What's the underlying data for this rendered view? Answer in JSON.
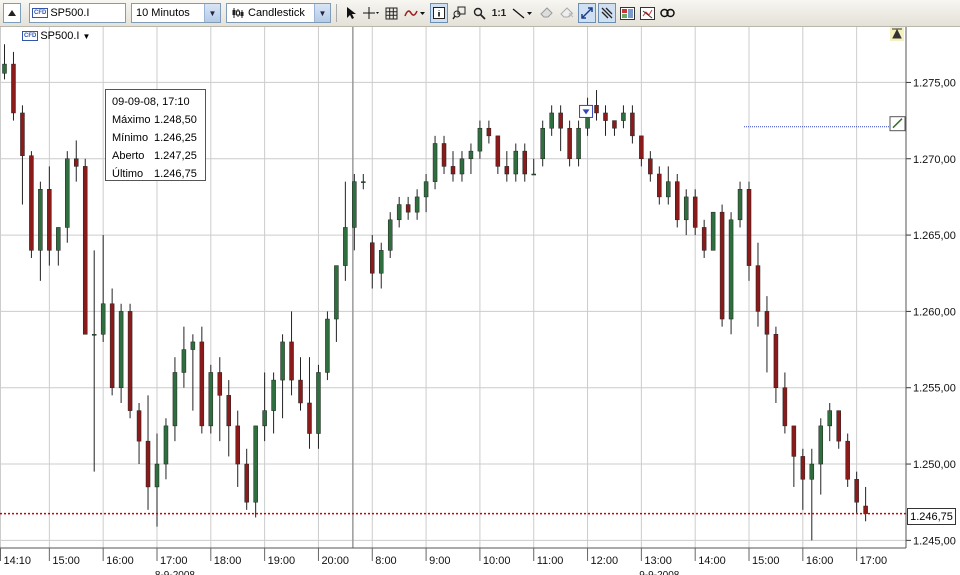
{
  "toolbar": {
    "symbol_badge": "CFD",
    "symbol_value": "SP500.I",
    "interval_value": "10 Minutos",
    "chart_type_value": "Candlestick",
    "one_to_one_label": "1:1"
  },
  "chart": {
    "instrument_badge": "CFD",
    "instrument_label": "SP500.I",
    "info_box": {
      "datetime": "09-09-08, 17:10",
      "rows": [
        {
          "label": "Máximo",
          "value": "1.248,50"
        },
        {
          "label": "Mínimo",
          "value": "1.246,25"
        },
        {
          "label": "Aberto",
          "value": "1.247,25"
        },
        {
          "label": "Último",
          "value": "1.246,75"
        }
      ]
    },
    "last_price_label": "1.246,75",
    "last_price_value": 1246.75,
    "colors": {
      "up": "#2f6e3e",
      "down": "#8b1a1a",
      "grid": "#cccccc",
      "last_line": "#cc0000",
      "marker": "#3344bb"
    }
  },
  "chart_data": {
    "type": "candlestick",
    "ylim": [
      1244.5,
      1278.5
    ],
    "y_ticks": [
      {
        "value": 1275,
        "label": "1.275,00"
      },
      {
        "value": 1270,
        "label": "1.270,00"
      },
      {
        "value": 1265,
        "label": "1.265,00"
      },
      {
        "value": 1260,
        "label": "1.260,00"
      },
      {
        "value": 1255,
        "label": "1.255,00"
      },
      {
        "value": 1250,
        "label": "1.250,00"
      },
      {
        "value": 1245,
        "label": "1.245,00"
      }
    ],
    "x_ticks": [
      "14:10",
      "15:00",
      "16:00",
      "17:00",
      "18:00",
      "19:00",
      "20:00",
      "8:00",
      "9:00",
      "10:00",
      "11:00",
      "12:00",
      "13:00",
      "14:00",
      "15:00",
      "16:00",
      "17:00"
    ],
    "x_tick_bar_index": [
      0,
      5,
      11,
      17,
      23,
      29,
      35,
      41,
      47,
      53,
      59,
      65,
      71,
      77,
      83,
      89,
      95
    ],
    "date_labels": [
      {
        "label": "8-9-2008",
        "bar_index": 19
      },
      {
        "label": "9-9-2008",
        "bar_index": 73
      }
    ],
    "session_break_bar_index": 38,
    "series": [
      {
        "ohlc": [
          [
            1275.6,
            1277.5,
            1275.2,
            1276.2
          ],
          [
            1276.2,
            1277.0,
            1272.5,
            1273.0
          ],
          [
            1273.0,
            1273.5,
            1267.0,
            1270.2
          ],
          [
            1270.2,
            1270.5,
            1263.5,
            1264.0
          ],
          [
            1264.0,
            1268.5,
            1262.0,
            1268.0
          ],
          [
            1268.0,
            1269.5,
            1263.0,
            1264.0
          ],
          [
            1264.0,
            1265.5,
            1263.0,
            1265.5
          ],
          [
            1265.5,
            1270.5,
            1264.5,
            1270.0
          ],
          [
            1270.0,
            1271.2,
            1268.5,
            1269.5
          ],
          [
            1269.5,
            1270.0,
            1258.5,
            1258.5
          ],
          [
            1258.5,
            1264.0,
            1249.5,
            1258.5
          ],
          [
            1258.5,
            1265.0,
            1258.0,
            1260.5
          ],
          [
            1260.5,
            1261.5,
            1254.5,
            1255.0
          ],
          [
            1255.0,
            1260.5,
            1254.0,
            1260.0
          ],
          [
            1260.0,
            1260.5,
            1253.0,
            1253.5
          ],
          [
            1253.5,
            1254.0,
            1250.0,
            1251.5
          ],
          [
            1251.5,
            1254.5,
            1247.0,
            1248.5
          ],
          [
            1248.5,
            1252.0,
            1245.9,
            1250.0
          ],
          [
            1250.0,
            1253.0,
            1249.0,
            1252.5
          ],
          [
            1252.5,
            1257.0,
            1251.5,
            1256.0
          ],
          [
            1256.0,
            1259.0,
            1255.0,
            1257.5
          ],
          [
            1257.5,
            1258.5,
            1253.5,
            1258.0
          ],
          [
            1258.0,
            1259.0,
            1252.0,
            1252.5
          ],
          [
            1252.5,
            1256.5,
            1252.0,
            1256.0
          ],
          [
            1256.0,
            1257.0,
            1251.5,
            1254.5
          ],
          [
            1254.5,
            1255.5,
            1250.5,
            1252.5
          ],
          [
            1252.5,
            1253.5,
            1248.5,
            1250.0
          ],
          [
            1250.0,
            1251.0,
            1247.0,
            1247.5
          ],
          [
            1247.5,
            1252.5,
            1246.5,
            1252.5
          ],
          [
            1252.5,
            1256.0,
            1251.5,
            1253.5
          ],
          [
            1253.5,
            1256.0,
            1252.0,
            1255.5
          ],
          [
            1255.5,
            1258.5,
            1253.0,
            1258.0
          ],
          [
            1258.0,
            1260.0,
            1254.5,
            1255.5
          ],
          [
            1255.5,
            1257.0,
            1253.5,
            1254.0
          ],
          [
            1254.0,
            1257.0,
            1251.0,
            1252.0
          ],
          [
            1252.0,
            1256.5,
            1251.0,
            1256.0
          ],
          [
            1256.0,
            1260.0,
            1255.5,
            1259.5
          ],
          [
            1259.5,
            1263.0,
            1258.0,
            1263.0
          ],
          [
            1263.0,
            1268.5,
            1262.0,
            1265.5
          ],
          [
            1265.5,
            1269.0,
            1264.0,
            1268.5
          ],
          [
            1268.5,
            1269.0,
            1268.0,
            1268.5
          ],
          [
            1264.5,
            1265.0,
            1261.5,
            1262.5
          ],
          [
            1262.5,
            1264.5,
            1261.5,
            1264.0
          ],
          [
            1264.0,
            1266.5,
            1263.5,
            1266.0
          ],
          [
            1266.0,
            1267.5,
            1265.5,
            1267.0
          ],
          [
            1267.0,
            1267.5,
            1266.0,
            1266.5
          ],
          [
            1266.5,
            1268.0,
            1266.0,
            1267.5
          ],
          [
            1267.5,
            1269.0,
            1266.5,
            1268.5
          ],
          [
            1268.5,
            1271.5,
            1268.0,
            1271.0
          ],
          [
            1271.0,
            1271.5,
            1269.0,
            1269.5
          ],
          [
            1269.5,
            1270.5,
            1268.5,
            1269.0
          ],
          [
            1269.0,
            1270.5,
            1268.5,
            1270.0
          ],
          [
            1270.0,
            1271.0,
            1269.0,
            1270.5
          ],
          [
            1270.5,
            1272.5,
            1270.0,
            1272.0
          ],
          [
            1272.0,
            1272.5,
            1271.0,
            1271.5
          ],
          [
            1271.5,
            1271.5,
            1269.0,
            1269.5
          ],
          [
            1269.5,
            1270.5,
            1268.5,
            1269.0
          ],
          [
            1269.0,
            1271.0,
            1268.5,
            1270.5
          ],
          [
            1270.5,
            1271.0,
            1268.5,
            1269.0
          ],
          [
            1269.0,
            1270.0,
            1269.0,
            1269.0
          ],
          [
            1270.0,
            1272.5,
            1269.5,
            1272.0
          ],
          [
            1272.0,
            1273.5,
            1271.5,
            1273.0
          ],
          [
            1273.0,
            1273.5,
            1270.5,
            1272.0
          ],
          [
            1272.0,
            1272.5,
            1269.5,
            1270.0
          ],
          [
            1270.0,
            1272.5,
            1269.5,
            1272.0
          ],
          [
            1272.0,
            1274.0,
            1271.5,
            1273.5
          ],
          [
            1273.5,
            1274.5,
            1272.5,
            1273.0
          ],
          [
            1273.0,
            1273.5,
            1271.5,
            1272.5
          ],
          [
            1272.5,
            1272.5,
            1271.5,
            1272.0
          ],
          [
            1272.5,
            1273.5,
            1272.0,
            1273.0
          ],
          [
            1273.0,
            1273.5,
            1271.0,
            1271.5
          ],
          [
            1271.5,
            1271.5,
            1269.5,
            1270.0
          ],
          [
            1270.0,
            1270.5,
            1268.5,
            1269.0
          ],
          [
            1269.0,
            1269.5,
            1267.0,
            1267.5
          ],
          [
            1267.5,
            1269.5,
            1267.0,
            1268.5
          ],
          [
            1268.5,
            1269.0,
            1265.5,
            1266.0
          ],
          [
            1266.0,
            1268.0,
            1265.0,
            1267.5
          ],
          [
            1267.5,
            1268.0,
            1265.0,
            1265.5
          ],
          [
            1265.5,
            1266.0,
            1263.5,
            1264.0
          ],
          [
            1264.0,
            1266.5,
            1264.0,
            1266.5
          ],
          [
            1266.5,
            1267.0,
            1259.0,
            1259.5
          ],
          [
            1259.5,
            1266.5,
            1258.5,
            1266.0
          ],
          [
            1266.0,
            1268.5,
            1265.5,
            1268.0
          ],
          [
            1268.0,
            1268.5,
            1262.0,
            1263.0
          ],
          [
            1263.0,
            1264.5,
            1259.0,
            1260.0
          ],
          [
            1260.0,
            1261.0,
            1256.0,
            1258.5
          ],
          [
            1258.5,
            1259.0,
            1254.0,
            1255.0
          ],
          [
            1255.0,
            1256.0,
            1252.0,
            1252.5
          ],
          [
            1252.5,
            1252.5,
            1248.5,
            1250.5
          ],
          [
            1250.5,
            1251.0,
            1247.0,
            1249.0
          ],
          [
            1249.0,
            1251.0,
            1245.0,
            1250.0
          ],
          [
            1250.0,
            1253.0,
            1248.0,
            1252.5
          ],
          [
            1252.5,
            1254.0,
            1251.5,
            1253.5
          ],
          [
            1253.5,
            1253.5,
            1251.0,
            1251.5
          ],
          [
            1251.5,
            1252.0,
            1248.5,
            1249.0
          ],
          [
            1249.0,
            1249.5,
            1246.8,
            1247.5
          ],
          [
            1247.25,
            1248.5,
            1246.25,
            1246.75
          ]
        ]
      }
    ]
  }
}
